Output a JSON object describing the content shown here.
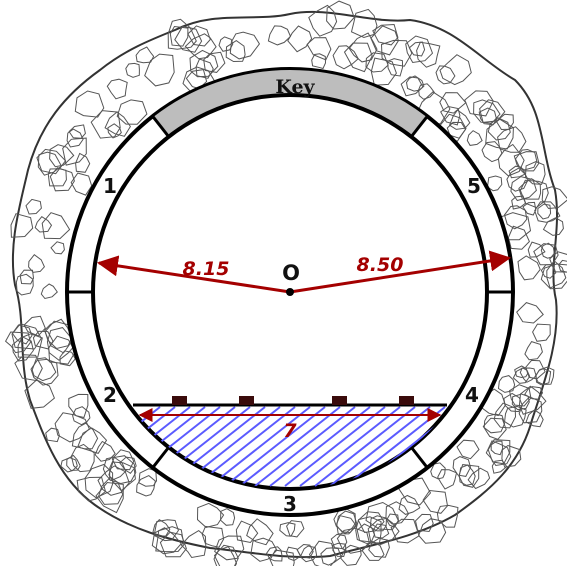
{
  "diagram": {
    "key_label": "Key",
    "segments": [
      "1",
      "2",
      "3",
      "4",
      "5"
    ],
    "center_label": "O",
    "left_dimension": "8.15",
    "right_dimension": "8.50",
    "floor_dimension": "7"
  },
  "colors": {
    "ring_outline": "#000000",
    "key_fill": "#bdbdbd",
    "dimension": "#a40000",
    "hatch": "#5b5bff",
    "rock": "#555555"
  }
}
